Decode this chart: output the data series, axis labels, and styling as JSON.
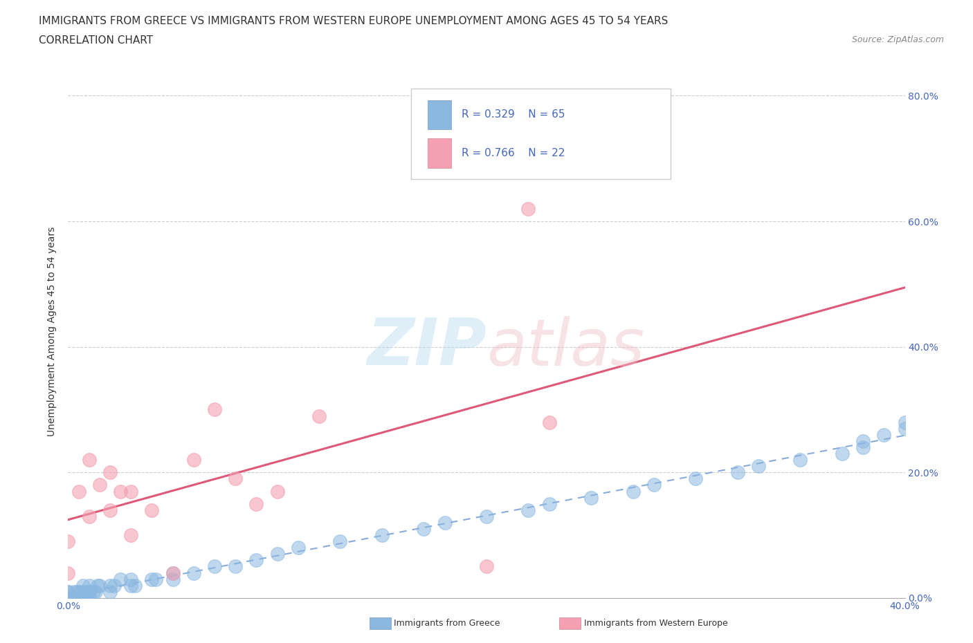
{
  "title_line1": "IMMIGRANTS FROM GREECE VS IMMIGRANTS FROM WESTERN EUROPE UNEMPLOYMENT AMONG AGES 45 TO 54 YEARS",
  "title_line2": "CORRELATION CHART",
  "source": "Source: ZipAtlas.com",
  "ylabel": "Unemployment Among Ages 45 to 54 years",
  "xlim": [
    0.0,
    0.4
  ],
  "ylim": [
    0.0,
    0.85
  ],
  "ytick_values": [
    0.0,
    0.2,
    0.4,
    0.6,
    0.8
  ],
  "xtick_values": [
    0.0,
    0.05,
    0.1,
    0.15,
    0.2,
    0.25,
    0.3,
    0.35,
    0.4
  ],
  "color_greece": "#8BB8E0",
  "color_western": "#F4A0B0",
  "color_greece_line": "#AACCEE",
  "color_western_line": "#E05070",
  "color_text_blue": "#4466BB",
  "greece_x": [
    0.0,
    0.0,
    0.0,
    0.0,
    0.0,
    0.0,
    0.0,
    0.0,
    0.0,
    0.0,
    0.002,
    0.002,
    0.003,
    0.003,
    0.004,
    0.005,
    0.005,
    0.006,
    0.007,
    0.008,
    0.01,
    0.01,
    0.01,
    0.01,
    0.012,
    0.013,
    0.014,
    0.015,
    0.02,
    0.02,
    0.022,
    0.025,
    0.03,
    0.03,
    0.032,
    0.04,
    0.042,
    0.05,
    0.05,
    0.06,
    0.07,
    0.08,
    0.09,
    0.1,
    0.11,
    0.13,
    0.15,
    0.17,
    0.18,
    0.2,
    0.22,
    0.23,
    0.25,
    0.27,
    0.28,
    0.3,
    0.32,
    0.33,
    0.35,
    0.37,
    0.38,
    0.38,
    0.39,
    0.4,
    0.4
  ],
  "greece_y": [
    0.0,
    0.0,
    0.0,
    0.0,
    0.0,
    0.0,
    0.0,
    0.0,
    0.01,
    0.01,
    0.0,
    0.0,
    0.0,
    0.01,
    0.01,
    0.0,
    0.01,
    0.01,
    0.02,
    0.01,
    0.0,
    0.01,
    0.02,
    0.01,
    0.01,
    0.01,
    0.02,
    0.02,
    0.01,
    0.02,
    0.02,
    0.03,
    0.02,
    0.03,
    0.02,
    0.03,
    0.03,
    0.04,
    0.03,
    0.04,
    0.05,
    0.05,
    0.06,
    0.07,
    0.08,
    0.09,
    0.1,
    0.11,
    0.12,
    0.13,
    0.14,
    0.15,
    0.16,
    0.17,
    0.18,
    0.19,
    0.2,
    0.21,
    0.22,
    0.23,
    0.24,
    0.25,
    0.26,
    0.27,
    0.28
  ],
  "western_x": [
    0.0,
    0.0,
    0.005,
    0.01,
    0.01,
    0.015,
    0.02,
    0.02,
    0.025,
    0.03,
    0.03,
    0.04,
    0.05,
    0.06,
    0.07,
    0.08,
    0.09,
    0.1,
    0.12,
    0.2,
    0.22,
    0.23
  ],
  "western_y": [
    0.04,
    0.09,
    0.17,
    0.13,
    0.22,
    0.18,
    0.14,
    0.2,
    0.17,
    0.1,
    0.17,
    0.14,
    0.04,
    0.22,
    0.3,
    0.19,
    0.15,
    0.17,
    0.29,
    0.05,
    0.62,
    0.28
  ]
}
